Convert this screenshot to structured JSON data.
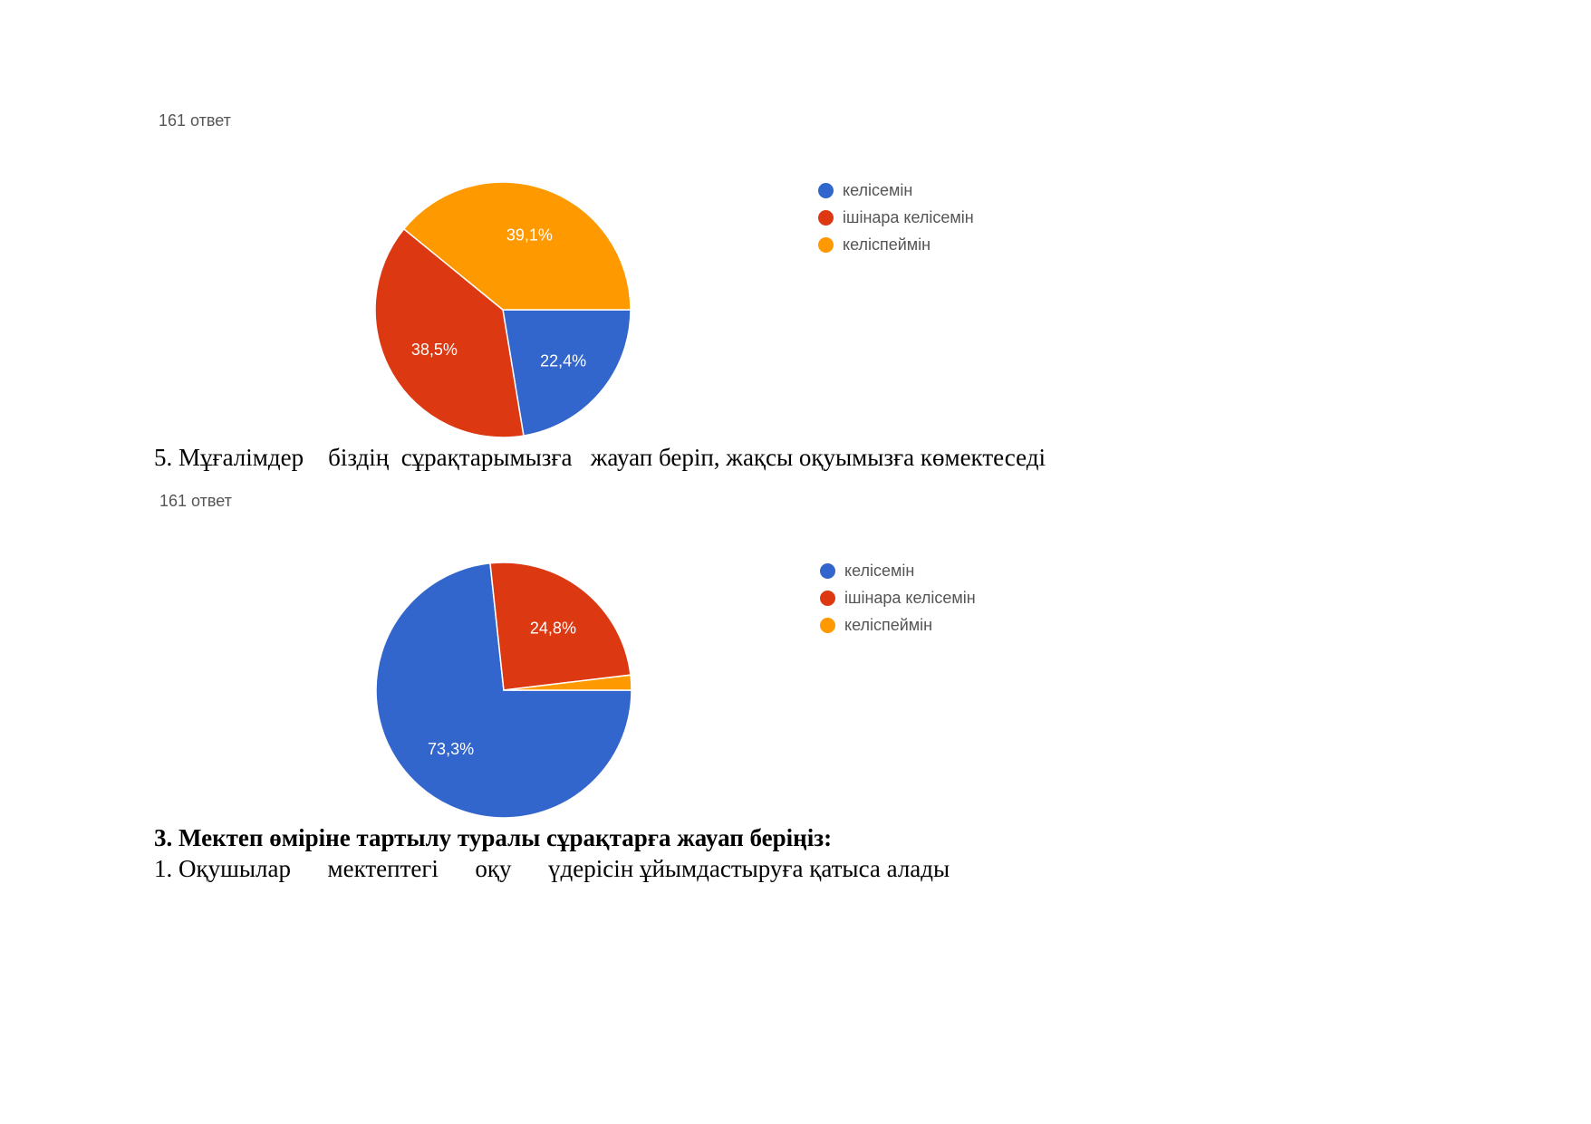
{
  "colors": {
    "agree": "#3366cc",
    "partly": "#dc3912",
    "disagree": "#ff9900"
  },
  "chart_data": [
    {
      "type": "pie",
      "response_count": "161 ответ",
      "categories": [
        "келісемін",
        "ішінара келісемін",
        "келіспеймін"
      ],
      "values": [
        22.4,
        38.5,
        39.1
      ],
      "labels": [
        "22,4%",
        "38,5%",
        "39,1%"
      ],
      "legend_position": "right"
    },
    {
      "type": "pie",
      "response_count": "161 ответ",
      "categories": [
        "келісемін",
        "ішінара келісемін",
        "келіспеймін"
      ],
      "values": [
        73.3,
        24.8,
        1.9
      ],
      "labels": [
        "73,3%",
        "24,8%",
        ""
      ],
      "legend_position": "right"
    }
  ],
  "document": {
    "question5": "5. Мұғалімдер    біздің  сұрақтарымызға   жауап беріп, жақсы оқуымызға көмектеседі",
    "section3_heading": "3. Мектеп өміріне тартылу туралы сұрақтарға жауап беріңіз:",
    "question1": "1. Оқушылар      мектептегі      оқу      үдерісін ұйымдастыруға қатыса алады"
  }
}
